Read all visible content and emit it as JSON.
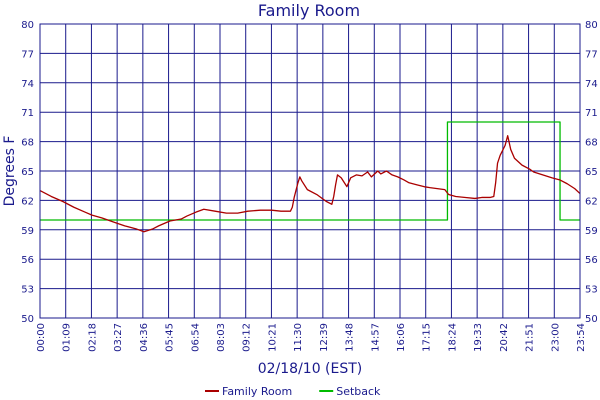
{
  "chart_data": {
    "type": "line",
    "title": "Family Room",
    "xlabel": "02/18/10 (EST)",
    "ylabel": "Degrees F",
    "ylim": [
      50,
      80
    ],
    "xlim": [
      "00:00",
      "23:54"
    ],
    "y_ticks": [
      "50",
      "53",
      "56",
      "59",
      "62",
      "65",
      "68",
      "71",
      "74",
      "77",
      "80"
    ],
    "x_ticks": [
      "00:00",
      "01:09",
      "02:18",
      "03:27",
      "04:36",
      "05:45",
      "06:54",
      "08:03",
      "09:12",
      "10:21",
      "11:30",
      "12:39",
      "13:48",
      "14:57",
      "16:06",
      "17:15",
      "18:24",
      "19:33",
      "20:42",
      "21:51",
      "23:00",
      "23:54"
    ],
    "grid": true,
    "legend": "bottom",
    "series": [
      {
        "name": "Family Room",
        "color": "#aa0000",
        "points": [
          [
            "00:00",
            63.0
          ],
          [
            "00:30",
            62.4
          ],
          [
            "01:00",
            61.9
          ],
          [
            "01:30",
            61.3
          ],
          [
            "02:00",
            60.8
          ],
          [
            "02:18",
            60.5
          ],
          [
            "02:45",
            60.2
          ],
          [
            "03:15",
            59.8
          ],
          [
            "03:45",
            59.4
          ],
          [
            "04:15",
            59.1
          ],
          [
            "04:36",
            58.8
          ],
          [
            "05:00",
            59.1
          ],
          [
            "05:15",
            59.4
          ],
          [
            "05:45",
            59.9
          ],
          [
            "06:15",
            60.1
          ],
          [
            "06:30",
            60.4
          ],
          [
            "06:54",
            60.8
          ],
          [
            "07:15",
            61.1
          ],
          [
            "07:45",
            60.9
          ],
          [
            "08:15",
            60.7
          ],
          [
            "08:45",
            60.7
          ],
          [
            "09:12",
            60.9
          ],
          [
            "09:45",
            61.0
          ],
          [
            "10:15",
            61.0
          ],
          [
            "10:40",
            60.9
          ],
          [
            "11:05",
            60.9
          ],
          [
            "11:10",
            61.3
          ],
          [
            "11:15",
            62.3
          ],
          [
            "11:25",
            63.8
          ],
          [
            "11:30",
            64.4
          ],
          [
            "11:35",
            64.0
          ],
          [
            "11:50",
            63.1
          ],
          [
            "12:15",
            62.6
          ],
          [
            "12:40",
            61.9
          ],
          [
            "12:55",
            61.6
          ],
          [
            "13:00",
            62.4
          ],
          [
            "13:05",
            63.6
          ],
          [
            "13:10",
            64.6
          ],
          [
            "13:20",
            64.3
          ],
          [
            "13:30",
            63.7
          ],
          [
            "13:35",
            63.4
          ],
          [
            "13:45",
            64.3
          ],
          [
            "14:00",
            64.6
          ],
          [
            "14:15",
            64.5
          ],
          [
            "14:30",
            64.9
          ],
          [
            "14:40",
            64.4
          ],
          [
            "14:57",
            65.0
          ],
          [
            "15:05",
            64.7
          ],
          [
            "15:20",
            65.0
          ],
          [
            "15:35",
            64.6
          ],
          [
            "15:50",
            64.4
          ],
          [
            "16:06",
            64.1
          ],
          [
            "16:20",
            63.8
          ],
          [
            "16:40",
            63.6
          ],
          [
            "17:00",
            63.4
          ],
          [
            "17:15",
            63.3
          ],
          [
            "17:35",
            63.2
          ],
          [
            "17:55",
            63.1
          ],
          [
            "18:05",
            62.6
          ],
          [
            "18:24",
            62.4
          ],
          [
            "18:50",
            62.3
          ],
          [
            "19:15",
            62.2
          ],
          [
            "19:33",
            62.3
          ],
          [
            "19:55",
            62.3
          ],
          [
            "20:05",
            62.4
          ],
          [
            "20:10",
            63.8
          ],
          [
            "20:15",
            65.8
          ],
          [
            "20:22",
            66.6
          ],
          [
            "20:35",
            67.6
          ],
          [
            "20:42",
            68.6
          ],
          [
            "20:50",
            67.2
          ],
          [
            "21:00",
            66.3
          ],
          [
            "21:20",
            65.6
          ],
          [
            "21:40",
            65.2
          ],
          [
            "21:51",
            64.9
          ],
          [
            "22:15",
            64.6
          ],
          [
            "22:40",
            64.3
          ],
          [
            "23:00",
            64.1
          ],
          [
            "23:20",
            63.7
          ],
          [
            "23:40",
            63.2
          ],
          [
            "23:54",
            62.7
          ]
        ]
      },
      {
        "name": "Setback",
        "color": "#00bb00",
        "points": [
          [
            "00:00",
            60.0
          ],
          [
            "18:02",
            60.0
          ],
          [
            "18:02",
            70.0
          ],
          [
            "23:01",
            70.0
          ],
          [
            "23:01",
            60.0
          ],
          [
            "23:54",
            60.0
          ]
        ]
      }
    ]
  }
}
